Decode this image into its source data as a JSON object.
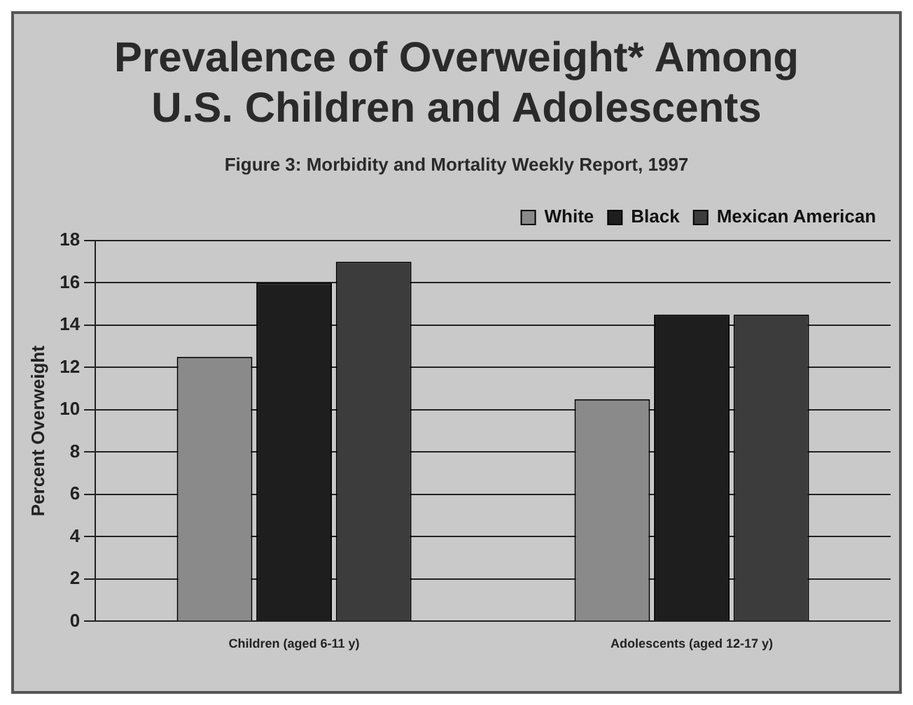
{
  "chart_data": {
    "type": "bar",
    "title": "Prevalence of Overweight* Among U.S. Children and Adolescents",
    "subtitle": "Figure 3:  Morbidity and Mortality Weekly Report, 1997",
    "ylabel": "Percent Overweight",
    "categories": [
      "Children (aged 6-11 y)",
      "Adolescents (aged 12-17 y)"
    ],
    "series": [
      {
        "name": "White",
        "color": "#8a8a8a",
        "values": [
          12.5,
          10.5
        ]
      },
      {
        "name": "Black",
        "color": "#1e1e1e",
        "values": [
          16,
          14.5
        ]
      },
      {
        "name": "Mexican American",
        "color": "#3c3c3c",
        "values": [
          17,
          14.5
        ]
      }
    ],
    "ylim": [
      0,
      18
    ],
    "yticks": [
      0,
      2,
      4,
      6,
      8,
      10,
      12,
      14,
      16,
      18
    ],
    "grid": "y",
    "legend": "top right"
  }
}
